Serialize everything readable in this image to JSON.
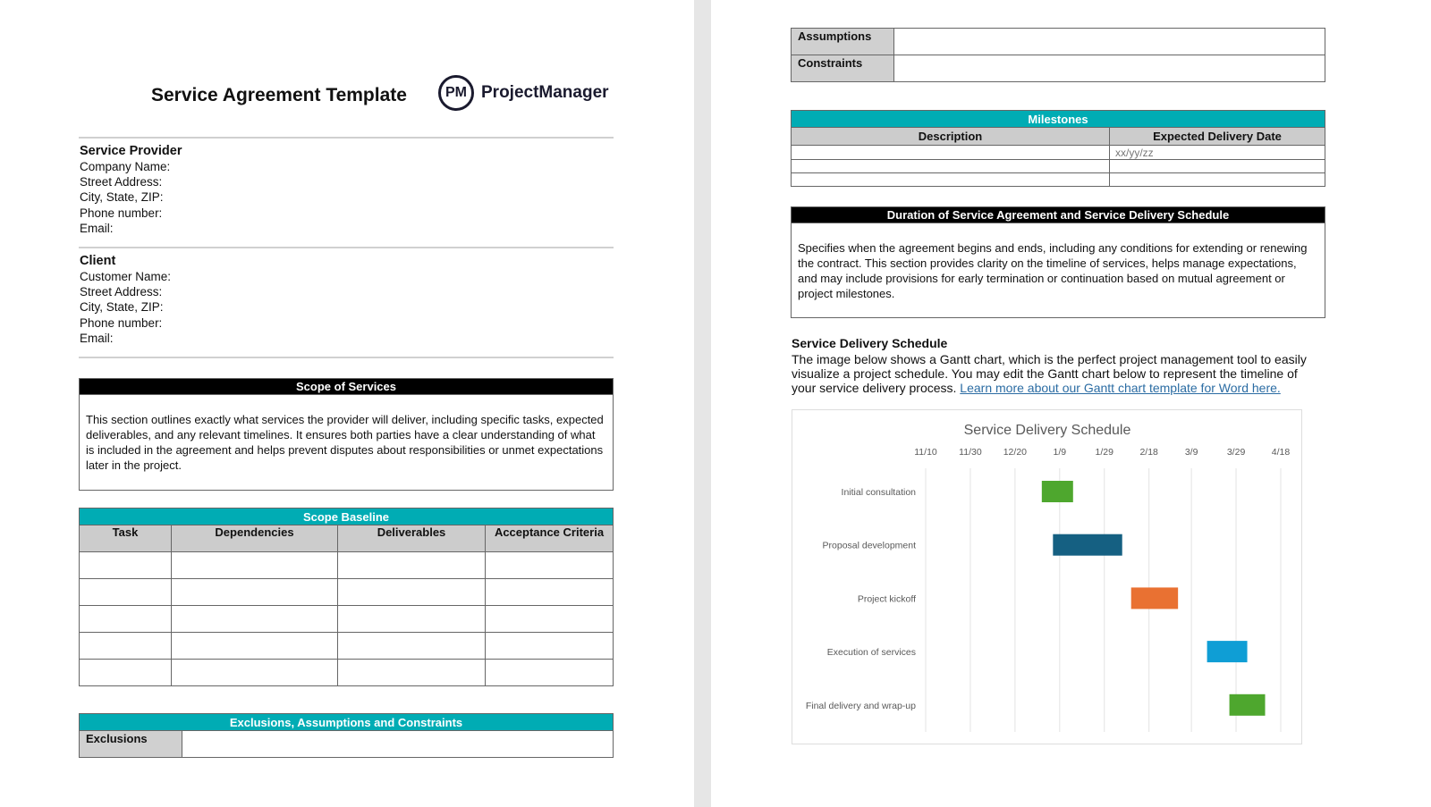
{
  "page1": {
    "title": "Service Agreement Template",
    "logo": {
      "mark": "PM",
      "name": "ProjectManager"
    },
    "provider": {
      "heading": "Service Provider",
      "fields": [
        "Company Name:",
        "Street Address:",
        "City, State, ZIP:",
        "Phone number:",
        "Email:"
      ]
    },
    "client": {
      "heading": "Client",
      "fields": [
        "Customer Name:",
        "Street Address:",
        "City, State, ZIP:",
        "Phone number:",
        "Email:"
      ]
    },
    "scope": {
      "heading": "Scope of Services",
      "text": "This section outlines exactly what services the provider will deliver, including specific tasks, expected deliverables, and any relevant timelines. It ensures both parties have a clear understanding of what is included in the agreement and helps prevent disputes about responsibilities or unmet expectations later in the project."
    },
    "baseline": {
      "heading": "Scope Baseline",
      "columns": [
        "Task",
        "Dependencies",
        "Deliverables",
        "Acceptance Criteria"
      ]
    },
    "exclusions": {
      "heading": "Exclusions, Assumptions and Constraints",
      "rows": [
        "Exclusions"
      ]
    }
  },
  "page2": {
    "eac_rows": [
      "Assumptions",
      "Constraints"
    ],
    "milestones": {
      "heading": "Milestones",
      "columns": [
        "Description",
        "Expected Delivery Date"
      ],
      "date_placeholder": "xx/yy/zz"
    },
    "duration": {
      "heading": "Duration of Service Agreement and Service Delivery Schedule",
      "text": "Specifies when the agreement begins and ends, including any conditions for extending or renewing the contract. This section provides clarity on the timeline of services, helps manage expectations, and may include provisions for early termination or continuation based on mutual agreement or project milestones."
    },
    "schedule": {
      "heading": "Service Delivery Schedule",
      "text": "The image below shows a Gantt chart, which is the perfect project management tool to easily visualize a project schedule. You may edit the Gantt chart below to represent the timeline of your service delivery process. ",
      "link": "Learn more about our Gantt chart template for Word here."
    }
  },
  "chart_data": {
    "type": "gantt",
    "title": "Service Delivery Schedule",
    "x_ticks": [
      "11/10",
      "11/30",
      "12/20",
      "1/9",
      "1/29",
      "2/18",
      "3/9",
      "3/29",
      "4/18"
    ],
    "xlim": [
      "11/10",
      "4/18"
    ],
    "grid": true,
    "tasks": [
      {
        "name": "Initial consultation",
        "start": "1/1",
        "end": "1/15",
        "color": "#4ea72e"
      },
      {
        "name": "Proposal development",
        "start": "1/6",
        "end": "2/6",
        "color": "#156082"
      },
      {
        "name": "Project kickoff",
        "start": "2/10",
        "end": "3/3",
        "color": "#e97132"
      },
      {
        "name": "Execution of services",
        "start": "3/16",
        "end": "4/3",
        "color": "#0f9ed5"
      },
      {
        "name": "Final delivery and wrap-up",
        "start": "3/26",
        "end": "4/11",
        "color": "#4ea72e"
      }
    ]
  }
}
